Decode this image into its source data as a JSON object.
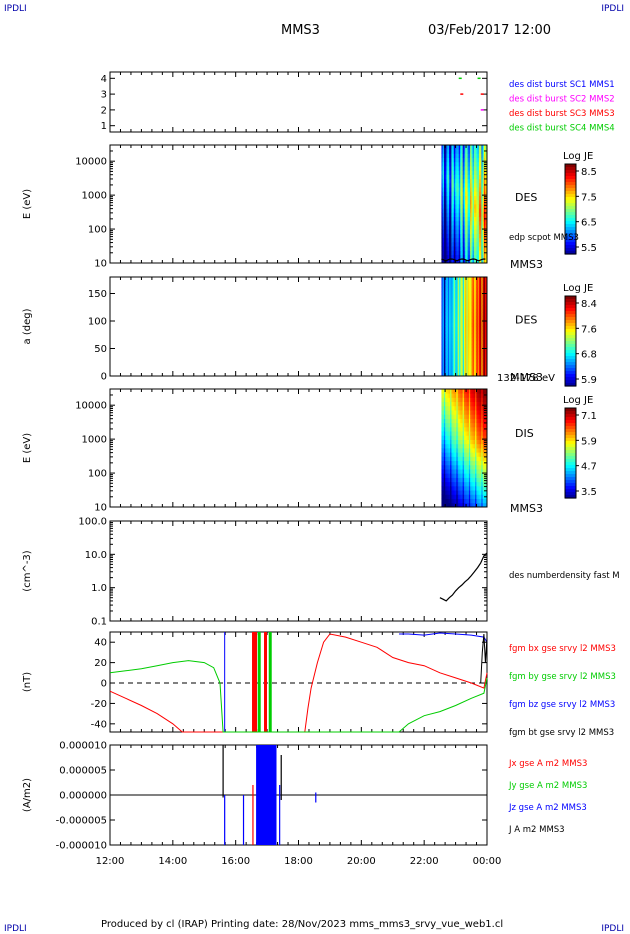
{
  "corners": {
    "top_left": "IPDLI",
    "top_right": "IPDLI",
    "bottom_left": "IPDLI",
    "bottom_right": "IPDLI"
  },
  "header": {
    "spacecraft": "MMS3",
    "datetime": "03/Feb/2017 12:00"
  },
  "footer": {
    "text": "Produced by cl (IRAP)   Printing date: 28/Nov/2023   mms_mms3_srvy_vue_web1.cl"
  },
  "colors": {
    "blue": "#0000ff",
    "magenta": "#ff00ff",
    "red": "#ff0000",
    "green": "#00cc00",
    "black": "#000000"
  },
  "chart_data": [
    {
      "type": "scatter",
      "id": "burst",
      "yticks": [
        "1",
        "2",
        "3",
        "4"
      ],
      "ylim": [
        0.6,
        4.4
      ],
      "legend": [
        {
          "text": "des dist burst SC1 MMS1",
          "color": "#0000ff"
        },
        {
          "text": "des dist burst SC2 MMS2",
          "color": "#ff00ff"
        },
        {
          "text": "des dist burst SC3 MMS3",
          "color": "#ff0000"
        },
        {
          "text": "des dist burst SC4 MMS4",
          "color": "#00cc00"
        }
      ],
      "marks": [
        {
          "sc": 3,
          "t": 23.15,
          "color": "#ff0000"
        },
        {
          "sc": 4,
          "t": 23.7,
          "color": "#00cc00"
        },
        {
          "sc": 3,
          "t": 23.8,
          "color": "#ff0000"
        },
        {
          "sc": 2,
          "t": 23.8,
          "color": "#ff00ff"
        },
        {
          "sc": 4,
          "t": 23.1,
          "color": "#00cc00"
        }
      ]
    },
    {
      "type": "heatmap",
      "id": "des_energy",
      "ylabel": "E (eV)",
      "yticks": [
        "10",
        "100",
        "1000",
        "10000"
      ],
      "ylog": [
        10,
        30000
      ],
      "data_start_hour": 22.5,
      "instrument": "DES",
      "sc_label": "MMS3",
      "overlay_label": "edp scpot MMS3",
      "colorbar": {
        "title": "Log JE",
        "ticks": [
          "8.5",
          "7.5",
          "6.5",
          "5.5"
        ]
      }
    },
    {
      "type": "heatmap",
      "id": "des_pitch",
      "ylabel": "a (deg)",
      "yticks": [
        "0",
        "50",
        "100",
        "150"
      ],
      "ylim": [
        0,
        180
      ],
      "data_start_hour": 22.5,
      "instrument": "DES",
      "sc_label": "MMS3",
      "energy_range": "132-178 eV",
      "colorbar": {
        "title": "Log JE",
        "ticks": [
          "8.4",
          "7.6",
          "6.8",
          "5.9"
        ]
      }
    },
    {
      "type": "heatmap",
      "id": "dis_energy",
      "ylabel": "E (eV)",
      "yticks": [
        "10",
        "100",
        "1000",
        "10000"
      ],
      "ylog": [
        10,
        30000
      ],
      "data_start_hour": 22.5,
      "instrument": "DIS",
      "sc_label": "MMS3",
      "colorbar": {
        "title": "Log JE",
        "ticks": [
          "7.1",
          "5.9",
          "4.7",
          "3.5"
        ]
      }
    },
    {
      "type": "line",
      "id": "density",
      "ylabel": "(cm^-3)",
      "yticks": [
        "0.1",
        "1.0",
        "10.0",
        "100.0"
      ],
      "ylog": [
        0.1,
        100
      ],
      "legend": [
        {
          "text": "des numberdensity fast M",
          "color": "#000000"
        }
      ],
      "series": [
        {
          "name": "des numberdensity fast M",
          "color": "#000000",
          "x": [
            22.5,
            22.6,
            22.7,
            22.8,
            22.9,
            23.0,
            23.1,
            23.2,
            23.3,
            23.4,
            23.5,
            23.6,
            23.7,
            23.8,
            23.9,
            24.0
          ],
          "y": [
            0.5,
            0.45,
            0.4,
            0.5,
            0.6,
            0.8,
            1.0,
            1.2,
            1.5,
            1.8,
            2.3,
            3.0,
            4.0,
            5.5,
            9.0,
            11.0
          ]
        }
      ]
    },
    {
      "type": "line",
      "id": "fgm",
      "ylabel": "(nT)",
      "yticks": [
        "-40",
        "-20",
        "0",
        "20",
        "40"
      ],
      "ylim": [
        -48,
        50
      ],
      "legend": [
        {
          "text": "fgm bx gse srvy l2 MMS3",
          "color": "#ff0000"
        },
        {
          "text": "fgm by gse srvy l2 MMS3",
          "color": "#00cc00"
        },
        {
          "text": "fgm bz gse srvy l2 MMS3",
          "color": "#0000ff"
        },
        {
          "text": "fgm bt gse srvy l2 MMS3",
          "color": "#000000"
        }
      ],
      "series": [
        {
          "name": "fgm bx gse srvy l2 MMS3",
          "color": "#ff0000",
          "x": [
            12.0,
            12.5,
            13.0,
            13.5,
            14.0,
            14.3,
            18.2,
            18.3,
            18.4,
            18.6,
            18.8,
            19.0,
            19.5,
            20.0,
            20.5,
            21.0,
            21.5,
            22.0,
            22.5,
            23.0,
            23.5,
            23.9,
            24.0
          ],
          "y": [
            -8,
            -15,
            -22,
            -30,
            -40,
            -48,
            -48,
            -25,
            -5,
            20,
            40,
            48,
            45,
            40,
            35,
            25,
            20,
            17,
            10,
            5,
            0,
            -5,
            10
          ]
        },
        {
          "name": "fgm by gse srvy l2 MMS3",
          "color": "#00cc00",
          "x": [
            12.0,
            12.5,
            13.0,
            13.5,
            14.0,
            14.5,
            15.0,
            15.3,
            15.5,
            15.6,
            21.2,
            21.5,
            22.0,
            22.5,
            23.0,
            23.5,
            23.9,
            24.0
          ],
          "y": [
            10,
            12,
            14,
            17,
            20,
            22,
            20,
            15,
            0,
            -48,
            -48,
            -40,
            -32,
            -28,
            -22,
            -15,
            -10,
            5
          ]
        },
        {
          "name": "fgm bz gse srvy l2 MMS3",
          "color": "#0000ff",
          "x": [
            21.2,
            21.5,
            22.0,
            22.5,
            23.0,
            23.5,
            23.9,
            24.0
          ],
          "y": [
            48,
            48,
            47,
            49,
            48,
            47,
            45,
            40
          ]
        },
        {
          "name": "fgm bt gse srvy l2 MMS3",
          "color": "#000000",
          "x": [
            23.8,
            23.85,
            23.9,
            23.95,
            24.0
          ],
          "y": [
            0,
            30,
            48,
            20,
            45
          ]
        }
      ],
      "vlines": [
        {
          "t": 15.65,
          "color": "#0000ff"
        },
        {
          "t": 16.6,
          "color": "#ff0000",
          "width": 5
        },
        {
          "t": 16.75,
          "color": "#00cc00",
          "width": 3
        },
        {
          "t": 16.95,
          "color": "#ff0000",
          "width": 3
        },
        {
          "t": 17.1,
          "color": "#00cc00",
          "width": 3
        }
      ]
    },
    {
      "type": "line",
      "id": "current",
      "ylabel": "(A/m2)",
      "yticks": [
        "-0.000010",
        "-0.000005",
        "0.000000",
        "0.000005",
        "0.000010"
      ],
      "ylim": [
        -1e-05,
        1e-05
      ],
      "legend": [
        {
          "text": "Jx gse A m2 MMS3",
          "color": "#ff0000"
        },
        {
          "text": "Jy gse A m2 MMS3",
          "color": "#00cc00"
        },
        {
          "text": "Jz gse A m2 MMS3",
          "color": "#0000ff"
        },
        {
          "text": "J A m2 MMS3",
          "color": "#000000"
        }
      ],
      "blocks": [
        {
          "t0": 16.65,
          "t1": 17.3,
          "color": "#0000ff"
        }
      ],
      "spikes": [
        {
          "t": 15.6,
          "color": "#000000",
          "lo": -5e-07,
          "hi": 1e-05
        },
        {
          "t": 15.65,
          "color": "#0000ff",
          "lo": -1e-05,
          "hi": 0
        },
        {
          "t": 16.25,
          "color": "#0000ff",
          "lo": -1e-05,
          "hi": 0
        },
        {
          "t": 16.55,
          "color": "#ff0000",
          "lo": -1e-05,
          "hi": 2e-06
        },
        {
          "t": 17.4,
          "color": "#0000ff",
          "lo": -1e-05,
          "hi": 2e-06
        },
        {
          "t": 17.45,
          "color": "#000000",
          "lo": -1e-06,
          "hi": 8e-06
        },
        {
          "t": 18.55,
          "color": "#0000ff",
          "lo": -1.5e-06,
          "hi": 5e-07
        }
      ],
      "xticks": [
        "12:00",
        "14:00",
        "16:00",
        "18:00",
        "20:00",
        "22:00",
        "00:00"
      ]
    }
  ]
}
